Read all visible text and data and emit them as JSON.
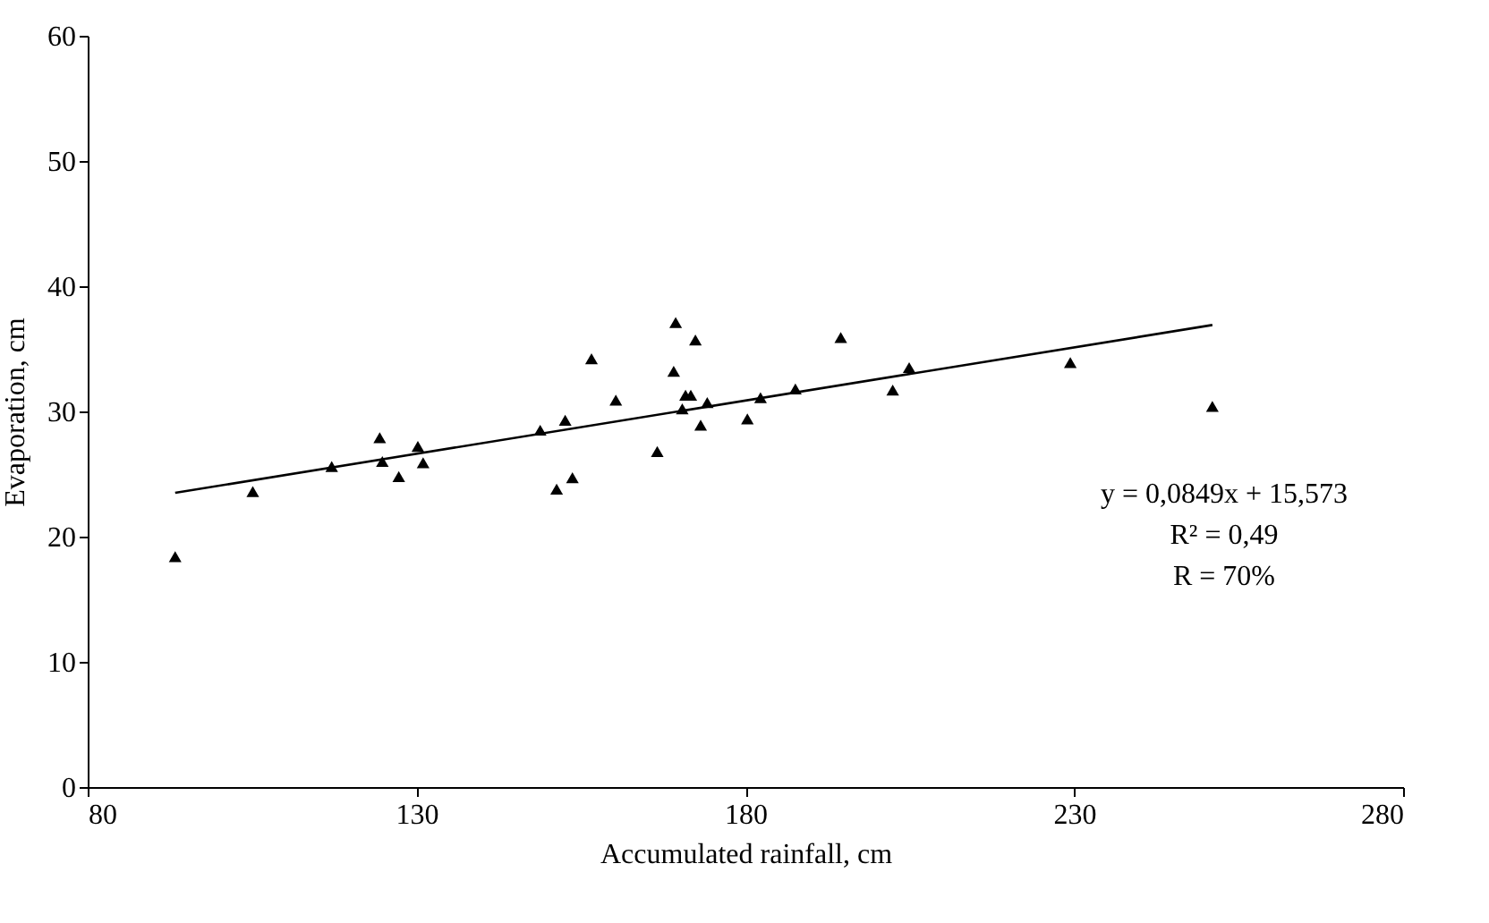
{
  "chart_data": {
    "type": "scatter",
    "xlabel": "Accumulated rainfall, cm",
    "ylabel": "Evaporation, cm",
    "xlim": [
      80,
      280
    ],
    "xticks": [
      80,
      130,
      180,
      230,
      280
    ],
    "ylim": [
      0,
      60
    ],
    "yticks": [
      0,
      10,
      20,
      30,
      40,
      50,
      60
    ],
    "grid": false,
    "series": [
      {
        "color": "#000000",
        "marker": "triangle",
        "x": [
          93.3,
          105.1,
          117.1,
          124.4,
          124.8,
          127.3,
          130.2,
          131.0,
          148.8,
          151.3,
          152.6,
          153.7,
          156.6,
          160.3,
          166.6,
          169.1,
          169.4,
          170.4,
          170.9,
          171.7,
          172.4,
          173.2,
          174.2,
          180.3,
          182.3,
          187.6,
          194.5,
          202.4,
          204.9,
          229.4,
          251.0
        ],
        "values": [
          18.4,
          23.6,
          25.6,
          27.9,
          26.0,
          24.8,
          27.2,
          25.9,
          28.5,
          23.8,
          29.3,
          24.7,
          34.2,
          30.9,
          26.8,
          33.2,
          37.1,
          30.2,
          31.3,
          31.3,
          35.7,
          28.9,
          30.7,
          29.4,
          31.1,
          31.8,
          35.9,
          31.7,
          33.5,
          33.9,
          30.4
        ]
      },
      {
        "type": "line",
        "color": "#000000",
        "line_style": "solid",
        "x": [
          93.3,
          251.0
        ],
        "values": [
          23.5,
          36.9
        ]
      }
    ],
    "annotations": [
      "y = 0,0849x + 15,573",
      "R² = 0,49",
      "R = 70%"
    ]
  }
}
